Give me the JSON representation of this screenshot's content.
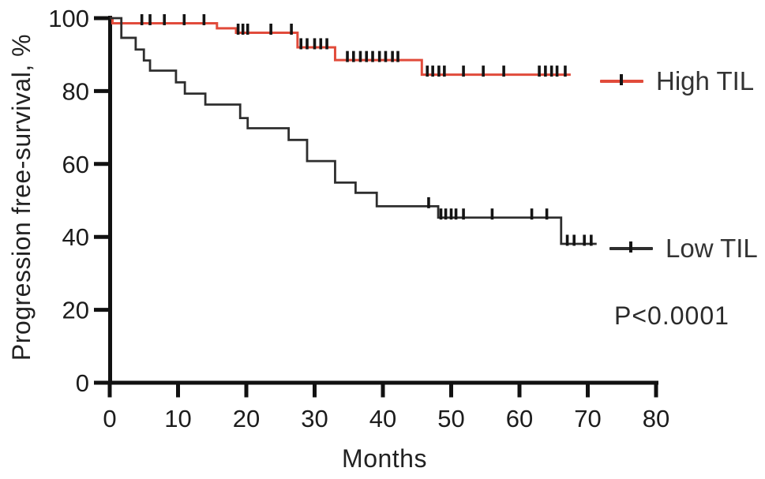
{
  "chart_data": {
    "type": "line",
    "subtype": "kaplan-meier-step",
    "title": "",
    "xlabel": "Months",
    "ylabel": "Progression free-survival, %",
    "p_value": "P<0.0001",
    "xlim": [
      0,
      80
    ],
    "ylim": [
      0,
      100
    ],
    "x_ticks": [
      0,
      10,
      20,
      30,
      40,
      50,
      60,
      70,
      80
    ],
    "y_ticks": [
      0,
      20,
      40,
      60,
      80,
      100
    ],
    "grid": false,
    "legend_position": "right",
    "axis_color": "#111111",
    "tick_label_color": "#1c1c1c",
    "censor_color": "#141414",
    "series": [
      {
        "name": "High TIL",
        "color": "#e14b3b",
        "line_width": 3,
        "steps": [
          [
            0,
            100
          ],
          [
            0.4,
            98.6
          ],
          [
            15.7,
            97.2
          ],
          [
            18.5,
            96.0
          ],
          [
            27.5,
            92.0
          ],
          [
            33,
            88.5
          ],
          [
            45.7,
            84.5
          ]
        ],
        "end_month": 67.5,
        "censors": [
          [
            4.7,
            98.6
          ],
          [
            5.9,
            98.6
          ],
          [
            8.0,
            98.6
          ],
          [
            10.9,
            98.6
          ],
          [
            13.8,
            98.6
          ],
          [
            18.8,
            96.0
          ],
          [
            19.5,
            96.0
          ],
          [
            20.2,
            96.0
          ],
          [
            23.6,
            96.0
          ],
          [
            26.6,
            96.0
          ],
          [
            28.0,
            92.0
          ],
          [
            28.9,
            92.0
          ],
          [
            30.0,
            92.0
          ],
          [
            30.9,
            92.0
          ],
          [
            31.8,
            92.0
          ],
          [
            34.8,
            88.5
          ],
          [
            35.7,
            88.5
          ],
          [
            36.7,
            88.5
          ],
          [
            37.6,
            88.5
          ],
          [
            38.5,
            88.5
          ],
          [
            39.5,
            88.5
          ],
          [
            40.4,
            88.5
          ],
          [
            41.4,
            88.5
          ],
          [
            42.2,
            88.5
          ],
          [
            46.5,
            84.5
          ],
          [
            47.3,
            84.5
          ],
          [
            48.2,
            84.5
          ],
          [
            49.0,
            84.5
          ],
          [
            51.8,
            84.5
          ],
          [
            54.7,
            84.5
          ],
          [
            57.7,
            84.5
          ],
          [
            62.9,
            84.5
          ],
          [
            63.8,
            84.5
          ],
          [
            64.7,
            84.5
          ],
          [
            65.5,
            84.5
          ],
          [
            66.7,
            84.5
          ]
        ]
      },
      {
        "name": "Low TIL",
        "color": "#2e2e2e",
        "line_width": 2.8,
        "steps": [
          [
            0,
            100
          ],
          [
            1.7,
            94.6
          ],
          [
            3.8,
            91.4
          ],
          [
            5.0,
            88.4
          ],
          [
            5.9,
            85.6
          ],
          [
            9.7,
            82.4
          ],
          [
            11.0,
            79.3
          ],
          [
            14.0,
            76.3
          ],
          [
            19.1,
            72.6
          ],
          [
            20.2,
            69.8
          ],
          [
            26.2,
            66.6
          ],
          [
            28.9,
            60.8
          ],
          [
            33.0,
            54.9
          ],
          [
            36.0,
            52.1
          ],
          [
            39.1,
            48.4
          ],
          [
            48.1,
            45.3
          ],
          [
            66.1,
            38.1
          ]
        ],
        "end_month": 71.3,
        "censors": [
          [
            46.7,
            48.4
          ],
          [
            48.5,
            45.3
          ],
          [
            49.2,
            45.3
          ],
          [
            50.0,
            45.3
          ],
          [
            50.7,
            45.3
          ],
          [
            51.8,
            45.3
          ],
          [
            56.0,
            45.3
          ],
          [
            61.8,
            45.3
          ],
          [
            64.0,
            45.3
          ],
          [
            67.0,
            38.1
          ],
          [
            68.0,
            38.1
          ],
          [
            69.5,
            38.1
          ],
          [
            70.5,
            38.1
          ]
        ]
      }
    ]
  }
}
